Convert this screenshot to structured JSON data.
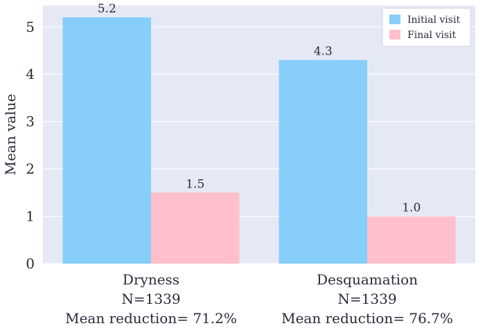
{
  "chart_data": {
    "type": "bar",
    "ylabel": "Mean value",
    "ylim": [
      0,
      5.45
    ],
    "yticks": [
      0,
      1,
      2,
      3,
      4,
      5
    ],
    "grid": true,
    "legend_position": "top-right",
    "categories": [
      [
        "Dryness",
        "N=1339",
        "Mean reduction= 71.2%"
      ],
      [
        "Desquamation",
        "N=1339",
        "Mean reduction= 76.7%"
      ]
    ],
    "series": [
      {
        "name": "Initial visit",
        "color": "#87cefa",
        "values": [
          5.2,
          4.3
        ],
        "labels": [
          "5.2",
          "4.3"
        ]
      },
      {
        "name": "Final visit",
        "color": "#ffc0cb",
        "values": [
          1.5,
          1.0
        ],
        "labels": [
          "1.5",
          "1.0"
        ]
      }
    ],
    "plot_background": "#e5e9f5"
  }
}
